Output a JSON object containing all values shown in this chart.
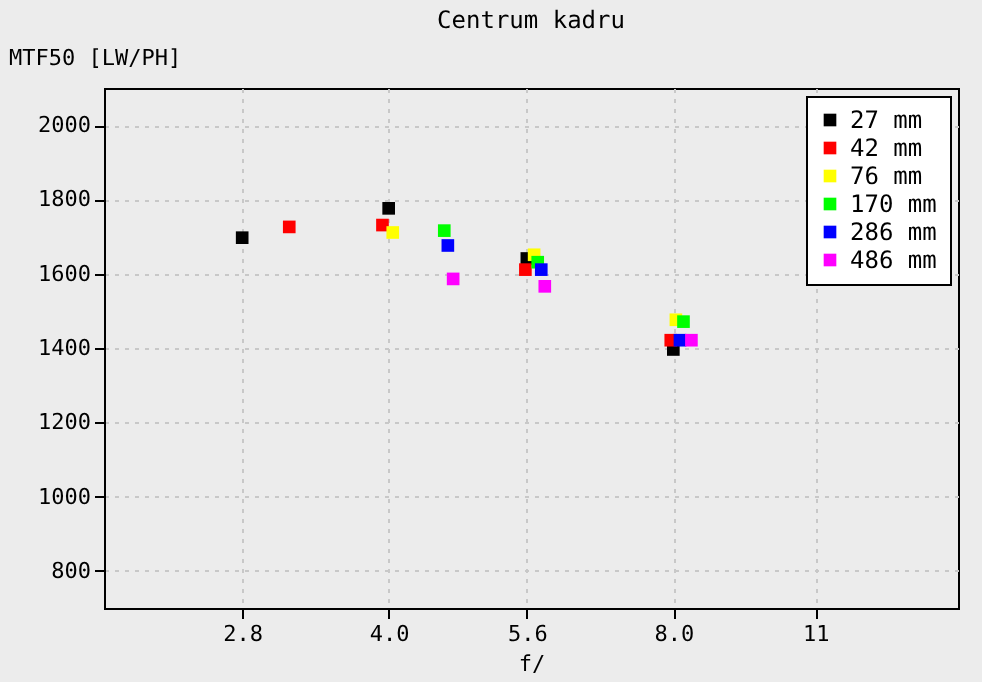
{
  "chart_data": {
    "type": "scatter",
    "title": "Centrum kadru",
    "xlabel": "f/",
    "ylabel": "MTF50 [LW/PH]",
    "log": "x",
    "xlim": [
      2.0,
      16.0
    ],
    "xticks": [
      {
        "value": 2.8,
        "label": "2.8"
      },
      {
        "value": 4,
        "label": "4.0"
      },
      {
        "value": 5.6,
        "label": "5.6"
      },
      {
        "value": 8,
        "label": "8.0"
      },
      {
        "value": 11.3,
        "label": "11"
      }
    ],
    "ylim": [
      700,
      2100
    ],
    "yticks": [
      800,
      1000,
      1200,
      1400,
      1600,
      1800,
      2000
    ],
    "grid": true,
    "legend": "top right",
    "marker": "square",
    "series": [
      {
        "name": "27 mm",
        "color": "#000000",
        "x": [
          2.8,
          4.0,
          5.6,
          8.0
        ],
        "values": [
          1697,
          1776,
          1641,
          1396
        ]
      },
      {
        "name": "42 mm",
        "color": "#ff0000",
        "x": [
          3.14,
          3.94,
          5.58,
          7.95
        ],
        "values": [
          1726,
          1731,
          1611,
          1421
        ]
      },
      {
        "name": "76 mm",
        "color": "#ffff00",
        "x": [
          4.04,
          5.7,
          8.05
        ],
        "values": [
          1711,
          1651,
          1476
        ]
      },
      {
        "name": "170 mm",
        "color": "#00ff00",
        "x": [
          4.58,
          5.75,
          8.2
        ],
        "values": [
          1716,
          1631,
          1471
        ]
      },
      {
        "name": "286 mm",
        "color": "#0000ff",
        "x": [
          4.62,
          5.8,
          8.13
        ],
        "values": [
          1676,
          1611,
          1421
        ]
      },
      {
        "name": "486 mm",
        "color": "#ff00ff",
        "x": [
          4.68,
          5.85,
          8.36
        ],
        "values": [
          1586,
          1566,
          1421
        ]
      }
    ]
  }
}
